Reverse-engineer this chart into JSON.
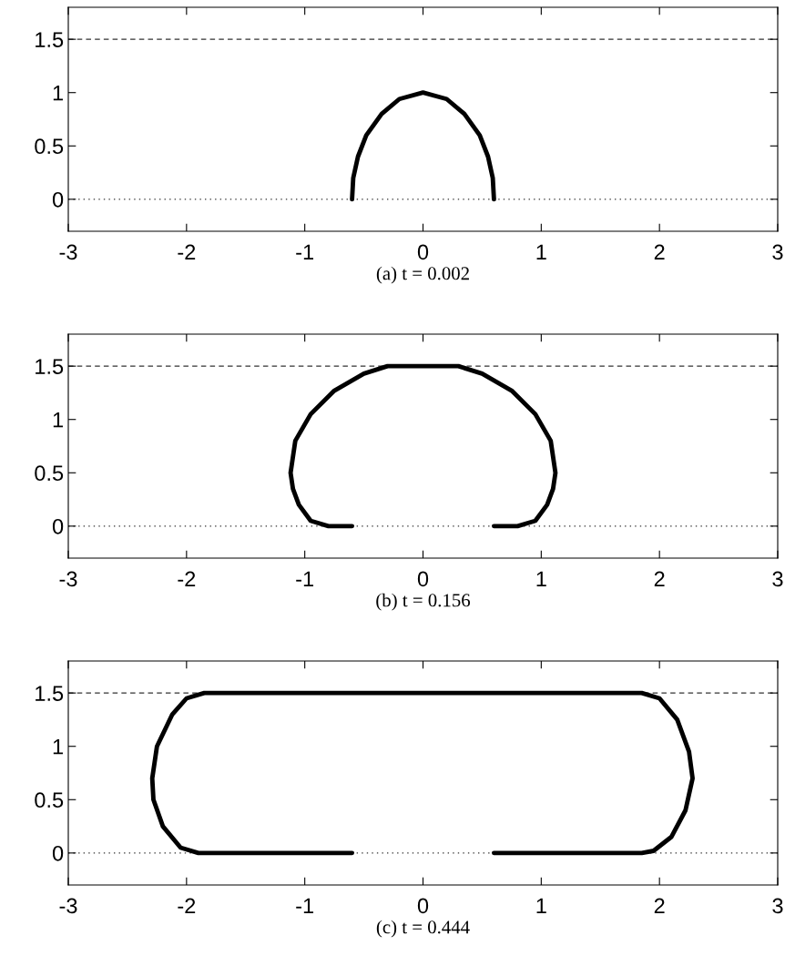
{
  "chart_data": [
    {
      "type": "line",
      "xlabel": "(a) t = 0.002",
      "xlim": [
        -3,
        3
      ],
      "ylim": [
        -0.3,
        1.8
      ],
      "xticks": [
        -3,
        -2,
        -1,
        0,
        1,
        2,
        3
      ],
      "yticks": [
        0,
        0.5,
        1,
        1.5
      ],
      "grid": false,
      "legend": false,
      "marker": "none",
      "line_style": "solid",
      "ref_lines": [
        {
          "axis": "y",
          "value": 0,
          "line_style": "dotted",
          "color": "#333333"
        },
        {
          "axis": "y",
          "value": 1.5,
          "line_style": "dashed",
          "color": "#333333"
        }
      ],
      "series": [
        {
          "color": "#000000",
          "x": [
            -0.6,
            -0.59,
            -0.55,
            -0.48,
            -0.35,
            -0.2,
            0,
            0.2,
            0.35,
            0.48,
            0.55,
            0.59,
            0.6
          ],
          "values": [
            0,
            0.2,
            0.4,
            0.6,
            0.8,
            0.94,
            1,
            0.94,
            0.8,
            0.6,
            0.4,
            0.2,
            0
          ]
        }
      ]
    },
    {
      "type": "line",
      "xlabel": "(b) t = 0.156",
      "xlim": [
        -3,
        3
      ],
      "ylim": [
        -0.3,
        1.8
      ],
      "xticks": [
        -3,
        -2,
        -1,
        0,
        1,
        2,
        3
      ],
      "yticks": [
        0,
        0.5,
        1,
        1.5
      ],
      "grid": false,
      "legend": false,
      "marker": "none",
      "line_style": "solid",
      "ref_lines": [
        {
          "axis": "y",
          "value": 0,
          "line_style": "dotted",
          "color": "#333333"
        },
        {
          "axis": "y",
          "value": 1.5,
          "line_style": "dashed",
          "color": "#333333"
        }
      ],
      "series": [
        {
          "color": "#000000",
          "x": [
            -0.6,
            -0.8,
            -0.95,
            -1.05,
            -1.1,
            -1.12,
            -1.08,
            -0.95,
            -0.75,
            -0.5,
            -0.3,
            0,
            0.3,
            0.5,
            0.75,
            0.95,
            1.08,
            1.12,
            1.1,
            1.05,
            0.95,
            0.8,
            0.6
          ],
          "values": [
            0,
            0,
            0.05,
            0.2,
            0.35,
            0.5,
            0.8,
            1.05,
            1.27,
            1.43,
            1.5,
            1.5,
            1.5,
            1.43,
            1.27,
            1.05,
            0.8,
            0.5,
            0.35,
            0.2,
            0.05,
            0,
            0
          ]
        }
      ]
    },
    {
      "type": "line",
      "xlabel": "(c) t = 0.444",
      "xlim": [
        -3,
        3
      ],
      "ylim": [
        -0.3,
        1.8
      ],
      "xticks": [
        -3,
        -2,
        -1,
        0,
        1,
        2,
        3
      ],
      "yticks": [
        0,
        0.5,
        1,
        1.5
      ],
      "grid": false,
      "legend": false,
      "marker": "none",
      "line_style": "solid",
      "ref_lines": [
        {
          "axis": "y",
          "value": 0,
          "line_style": "dotted",
          "color": "#333333"
        },
        {
          "axis": "y",
          "value": 1.5,
          "line_style": "dashed",
          "color": "#333333"
        }
      ],
      "series": [
        {
          "color": "#000000",
          "x": [
            -0.6,
            -1.2,
            -1.9,
            -2.05,
            -2.2,
            -2.28,
            -2.29,
            -2.25,
            -2.12,
            -2.0,
            -1.85,
            0,
            1.85,
            2.0,
            2.15,
            2.25,
            2.28,
            2.22,
            2.1,
            1.95,
            1.85,
            1.2,
            0.6
          ],
          "values": [
            0,
            0,
            0,
            0.05,
            0.25,
            0.5,
            0.7,
            1.0,
            1.3,
            1.45,
            1.5,
            1.5,
            1.5,
            1.45,
            1.25,
            0.95,
            0.7,
            0.4,
            0.15,
            0.02,
            0,
            0,
            0
          ]
        }
      ]
    }
  ]
}
